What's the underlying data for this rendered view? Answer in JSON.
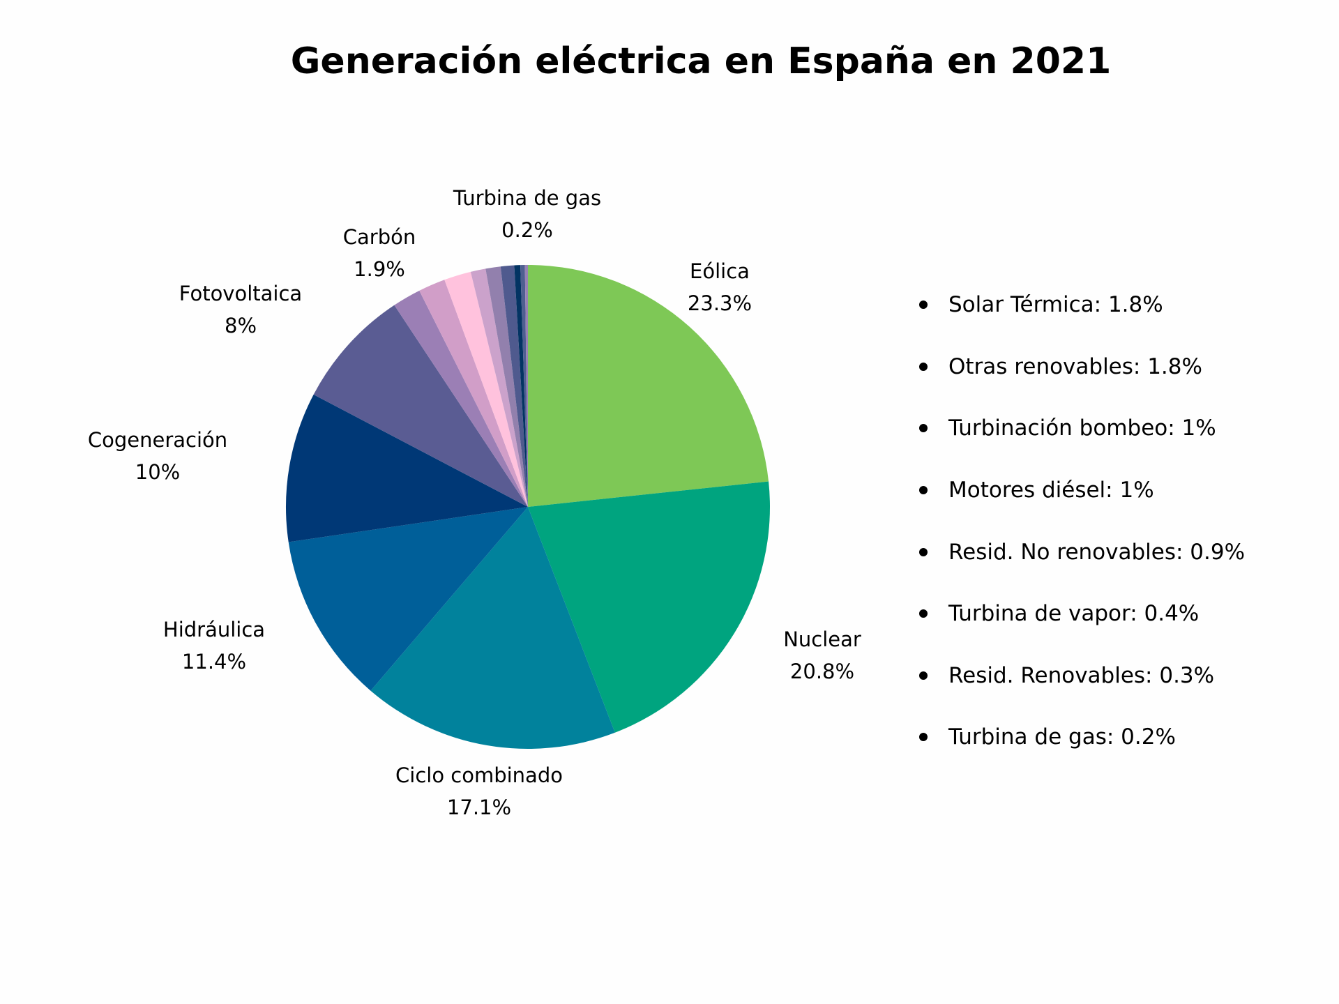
{
  "chart_data": {
    "type": "pie",
    "title": "Generación eléctrica en España en 2021",
    "slices": [
      {
        "label": "Eólica",
        "value": 23.3,
        "display": "23.3%",
        "color": "#7ec856",
        "labeled": true
      },
      {
        "label": "Nuclear",
        "value": 20.8,
        "display": "20.8%",
        "color": "#00a47f",
        "labeled": true
      },
      {
        "label": "Ciclo combinado",
        "value": 17.1,
        "display": "17.1%",
        "color": "#01829c",
        "labeled": true
      },
      {
        "label": "Hidráulica",
        "value": 11.4,
        "display": "11.4%",
        "color": "#005f99",
        "labeled": true
      },
      {
        "label": "Cogeneración",
        "value": 10,
        "display": "10%",
        "color": "#003876",
        "labeled": true
      },
      {
        "label": "Fotovoltaica",
        "value": 8,
        "display": "8%",
        "color": "#5a5c93",
        "labeled": true
      },
      {
        "label": "Carbón",
        "value": 1.9,
        "display": "1.9%",
        "color": "#9b7fb5",
        "labeled": true
      },
      {
        "label": "Solar Térmica",
        "value": 1.8,
        "display": "1.8%",
        "color": "#d19ec8",
        "labeled": false
      },
      {
        "label": "Otras renovables",
        "value": 1.8,
        "display": "1.8%",
        "color": "#ffc2dd",
        "labeled": false
      },
      {
        "label": "Turbinación bombeo",
        "value": 1,
        "display": "1%",
        "color": "#cba2cb",
        "labeled": false
      },
      {
        "label": "Motores diésel",
        "value": 1,
        "display": "1%",
        "color": "#9280ad",
        "labeled": false
      },
      {
        "label": "Resid. No renovables",
        "value": 0.9,
        "display": "0.9%",
        "color": "#4f5a8e",
        "labeled": false
      },
      {
        "label": "Turbina de vapor",
        "value": 0.4,
        "display": "0.4%",
        "color": "#033463",
        "labeled": false
      },
      {
        "label": "Resid. Renovables",
        "value": 0.3,
        "display": "0.3%",
        "color": "#4e5f90",
        "labeled": false
      },
      {
        "label": "Turbina de gas",
        "value": 0.2,
        "display": "0.2%",
        "color": "#9682b4",
        "labeled": true
      }
    ],
    "legend": [
      "Solar Térmica: 1.8%",
      "Otras renovables: 1.8%",
      "Turbinación bombeo: 1%",
      "Motores diésel: 1%",
      "Resid. No renovables: 0.9%",
      "Turbina de vapor: 0.4%",
      "Resid. Renovables: 0.3%",
      "Turbina de gas: 0.2%"
    ],
    "legend_placement": "right",
    "start": "top, clockwise"
  }
}
